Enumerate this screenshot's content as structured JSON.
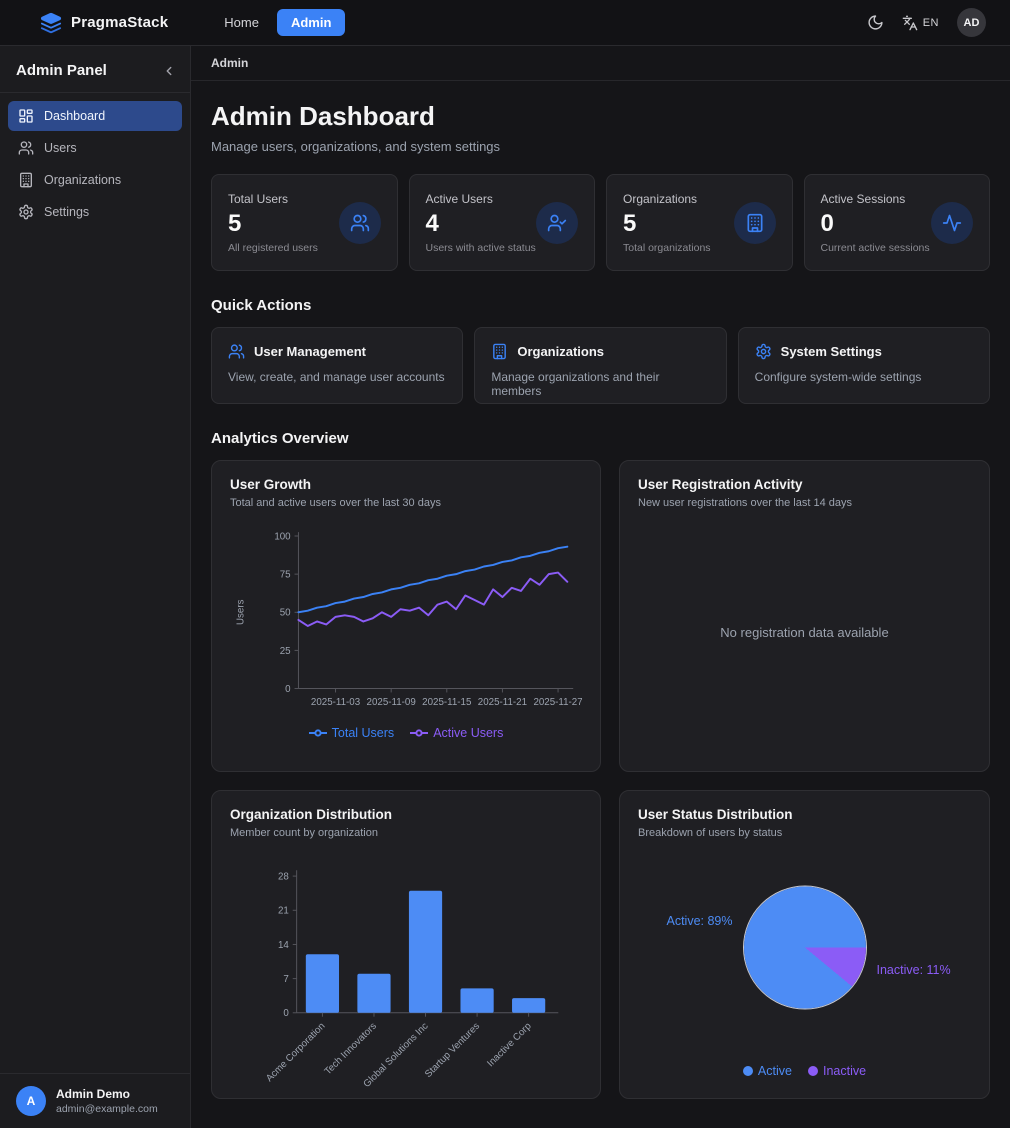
{
  "navbar": {
    "brand": "PragmaStack",
    "links": [
      {
        "label": "Home",
        "active": false
      },
      {
        "label": "Admin",
        "active": true
      }
    ],
    "lang": "EN",
    "avatar": "AD"
  },
  "sidebar": {
    "title": "Admin Panel",
    "items": [
      {
        "label": "Dashboard",
        "icon": "dashboard-grid-icon",
        "active": true
      },
      {
        "label": "Users",
        "icon": "users-icon",
        "active": false
      },
      {
        "label": "Organizations",
        "icon": "building-icon",
        "active": false
      },
      {
        "label": "Settings",
        "icon": "gear-icon",
        "active": false
      }
    ],
    "user": {
      "initial": "A",
      "name": "Admin Demo",
      "email": "admin@example.com"
    }
  },
  "breadcrumb": "Admin",
  "header": {
    "title": "Admin Dashboard",
    "subtitle": "Manage users, organizations, and system settings"
  },
  "stats": [
    {
      "label": "Total Users",
      "value": "5",
      "desc": "All registered users",
      "icon": "users-icon"
    },
    {
      "label": "Active Users",
      "value": "4",
      "desc": "Users with active status",
      "icon": "user-check-icon"
    },
    {
      "label": "Organizations",
      "value": "5",
      "desc": "Total organizations",
      "icon": "building-icon"
    },
    {
      "label": "Active Sessions",
      "value": "0",
      "desc": "Current active sessions",
      "icon": "activity-icon"
    }
  ],
  "quick_actions": {
    "heading": "Quick Actions",
    "cards": [
      {
        "title": "User Management",
        "desc": "View, create, and manage user accounts",
        "icon": "users-icon"
      },
      {
        "title": "Organizations",
        "desc": "Manage organizations and their members",
        "icon": "building-icon"
      },
      {
        "title": "System Settings",
        "desc": "Configure system-wide settings",
        "icon": "gear-icon"
      }
    ]
  },
  "analytics_heading": "Analytics Overview",
  "colors": {
    "accent_blue": "#3b82f6",
    "accent_purple": "#8b5cf6",
    "bar_blue": "#4d8cf5"
  },
  "chart_data": [
    {
      "type": "line",
      "title": "User Growth",
      "subtitle": "Total and active users over the last 30 days",
      "ylabel": "Users",
      "ylim": [
        0,
        100
      ],
      "yticks": [
        0,
        25,
        50,
        75,
        100
      ],
      "xtick_labels": [
        "2025-11-03",
        "2025-11-09",
        "2025-11-15",
        "2025-11-21",
        "2025-11-27"
      ],
      "xtick_indices": [
        4,
        10,
        16,
        22,
        28
      ],
      "legend_position": "bottom",
      "series": [
        {
          "name": "Total Users",
          "color": "#3b82f6",
          "values": [
            50,
            51,
            53,
            54,
            56,
            57,
            59,
            60,
            62,
            63,
            65,
            66,
            68,
            69,
            71,
            72,
            74,
            75,
            77,
            78,
            80,
            81,
            83,
            84,
            86,
            87,
            89,
            90,
            92,
            93
          ]
        },
        {
          "name": "Active Users",
          "color": "#8b5cf6",
          "values": [
            45,
            41,
            44,
            42,
            47,
            48,
            47,
            44,
            46,
            50,
            47,
            52,
            51,
            53,
            48,
            55,
            57,
            52,
            61,
            58,
            55,
            65,
            60,
            66,
            64,
            72,
            68,
            75,
            76,
            70
          ]
        }
      ]
    },
    {
      "type": "line",
      "title": "User Registration Activity",
      "subtitle": "New user registrations over the last 14 days",
      "values": [],
      "empty_text": "No registration data available"
    },
    {
      "type": "bar",
      "title": "Organization Distribution",
      "subtitle": "Member count by organization",
      "categories": [
        "Acme Corporation",
        "Tech Innovators",
        "Global Solutions Inc",
        "Startup Ventures",
        "Inactive Corp"
      ],
      "values": [
        12,
        8,
        25,
        5,
        3
      ],
      "ylim": [
        0,
        28
      ],
      "yticks": [
        0,
        7,
        14,
        21,
        28
      ],
      "bar_color": "#4d8cf5"
    },
    {
      "type": "pie",
      "title": "User Status Distribution",
      "subtitle": "Breakdown of users by status",
      "slices": [
        {
          "label": "Active",
          "pct": 89,
          "color": "#4d8cf5"
        },
        {
          "label": "Inactive",
          "pct": 11,
          "color": "#8b5cf6"
        }
      ],
      "labels": [
        "Active: 89%",
        "Inactive: 11%"
      ],
      "legend_position": "bottom"
    }
  ]
}
